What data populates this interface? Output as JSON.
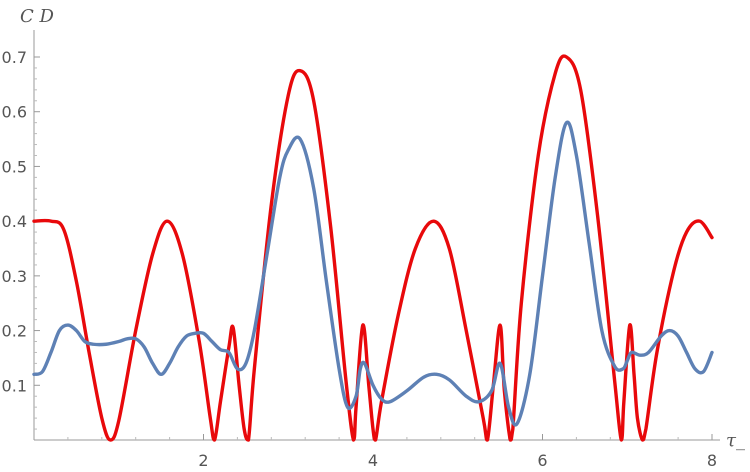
{
  "chart_data": {
    "type": "line",
    "title": "",
    "xlabel": "τ_",
    "ylabel": "C D",
    "xlim": [
      0,
      8
    ],
    "ylim": [
      0,
      0.7
    ],
    "x_ticks": [
      2,
      4,
      6,
      8
    ],
    "x_tick_labels": [
      "2",
      "4",
      "6",
      "8"
    ],
    "y_ticks": [
      0.1,
      0.2,
      0.3,
      0.4,
      0.5,
      0.6,
      0.7
    ],
    "y_tick_labels": [
      "0.1",
      "0.2",
      "0.3",
      "0.4",
      "0.5",
      "0.6",
      "0.7"
    ],
    "grid": false,
    "legend": "none",
    "series": [
      {
        "color": "#e8090b",
        "x": [
          0,
          0.2,
          0.35,
          0.5,
          0.65,
          0.8,
          0.9,
          1.0,
          1.2,
          1.4,
          1.571,
          1.75,
          1.95,
          2.08,
          2.13,
          2.2,
          2.3,
          2.35,
          2.42,
          2.48,
          2.53,
          2.6,
          2.8,
          3.0,
          3.14,
          3.3,
          3.5,
          3.68,
          3.77,
          3.8,
          3.88,
          3.95,
          4.0,
          4.03,
          4.1,
          4.3,
          4.5,
          4.712,
          4.9,
          5.1,
          5.3,
          5.35,
          5.42,
          5.5,
          5.55,
          5.62,
          5.65,
          5.75,
          5.95,
          6.15,
          6.283,
          6.45,
          6.65,
          6.85,
          6.93,
          6.96,
          7.03,
          7.08,
          7.12,
          7.18,
          7.22,
          7.35,
          7.55,
          7.7,
          7.854,
          8.0
        ],
        "values": [
          0.4,
          0.4,
          0.385,
          0.29,
          0.16,
          0.04,
          0.0,
          0.035,
          0.2,
          0.34,
          0.4,
          0.34,
          0.18,
          0.04,
          0.0,
          0.07,
          0.17,
          0.205,
          0.1,
          0.02,
          0.0,
          0.13,
          0.43,
          0.63,
          0.675,
          0.62,
          0.39,
          0.11,
          0.0,
          0.06,
          0.21,
          0.1,
          0.02,
          0.0,
          0.07,
          0.23,
          0.35,
          0.4,
          0.35,
          0.2,
          0.04,
          0.0,
          0.1,
          0.21,
          0.09,
          0.0,
          0.02,
          0.25,
          0.52,
          0.67,
          0.7,
          0.64,
          0.41,
          0.11,
          0.0,
          0.07,
          0.21,
          0.12,
          0.04,
          0.0,
          0.02,
          0.16,
          0.31,
          0.38,
          0.4,
          0.37
        ]
      },
      {
        "color": "#5e81b5",
        "x": [
          0,
          0.1,
          0.2,
          0.3,
          0.4,
          0.5,
          0.6,
          0.7,
          0.85,
          1.0,
          1.1,
          1.2,
          1.3,
          1.4,
          1.5,
          1.6,
          1.7,
          1.8,
          1.9,
          2.0,
          2.1,
          2.2,
          2.3,
          2.4,
          2.5,
          2.6,
          2.75,
          2.9,
          3.0,
          3.14,
          3.3,
          3.45,
          3.6,
          3.7,
          3.8,
          3.85,
          3.9,
          4.0,
          4.1,
          4.2,
          4.4,
          4.6,
          4.75,
          4.9,
          5.1,
          5.25,
          5.4,
          5.5,
          5.6,
          5.7,
          5.85,
          6.0,
          6.15,
          6.283,
          6.4,
          6.55,
          6.7,
          6.85,
          6.95,
          7.0,
          7.05,
          7.15,
          7.25,
          7.4,
          7.5,
          7.6,
          7.7,
          7.8,
          7.9,
          8.0
        ],
        "values": [
          0.12,
          0.125,
          0.16,
          0.2,
          0.21,
          0.2,
          0.18,
          0.175,
          0.175,
          0.18,
          0.185,
          0.185,
          0.17,
          0.14,
          0.12,
          0.14,
          0.17,
          0.19,
          0.195,
          0.195,
          0.18,
          0.165,
          0.16,
          0.13,
          0.14,
          0.2,
          0.34,
          0.48,
          0.53,
          0.55,
          0.46,
          0.29,
          0.13,
          0.06,
          0.08,
          0.13,
          0.14,
          0.1,
          0.075,
          0.07,
          0.09,
          0.115,
          0.12,
          0.11,
          0.08,
          0.07,
          0.09,
          0.14,
          0.06,
          0.03,
          0.12,
          0.3,
          0.48,
          0.58,
          0.52,
          0.36,
          0.2,
          0.135,
          0.13,
          0.145,
          0.16,
          0.155,
          0.16,
          0.19,
          0.2,
          0.19,
          0.16,
          0.13,
          0.125,
          0.16
        ]
      }
    ]
  }
}
